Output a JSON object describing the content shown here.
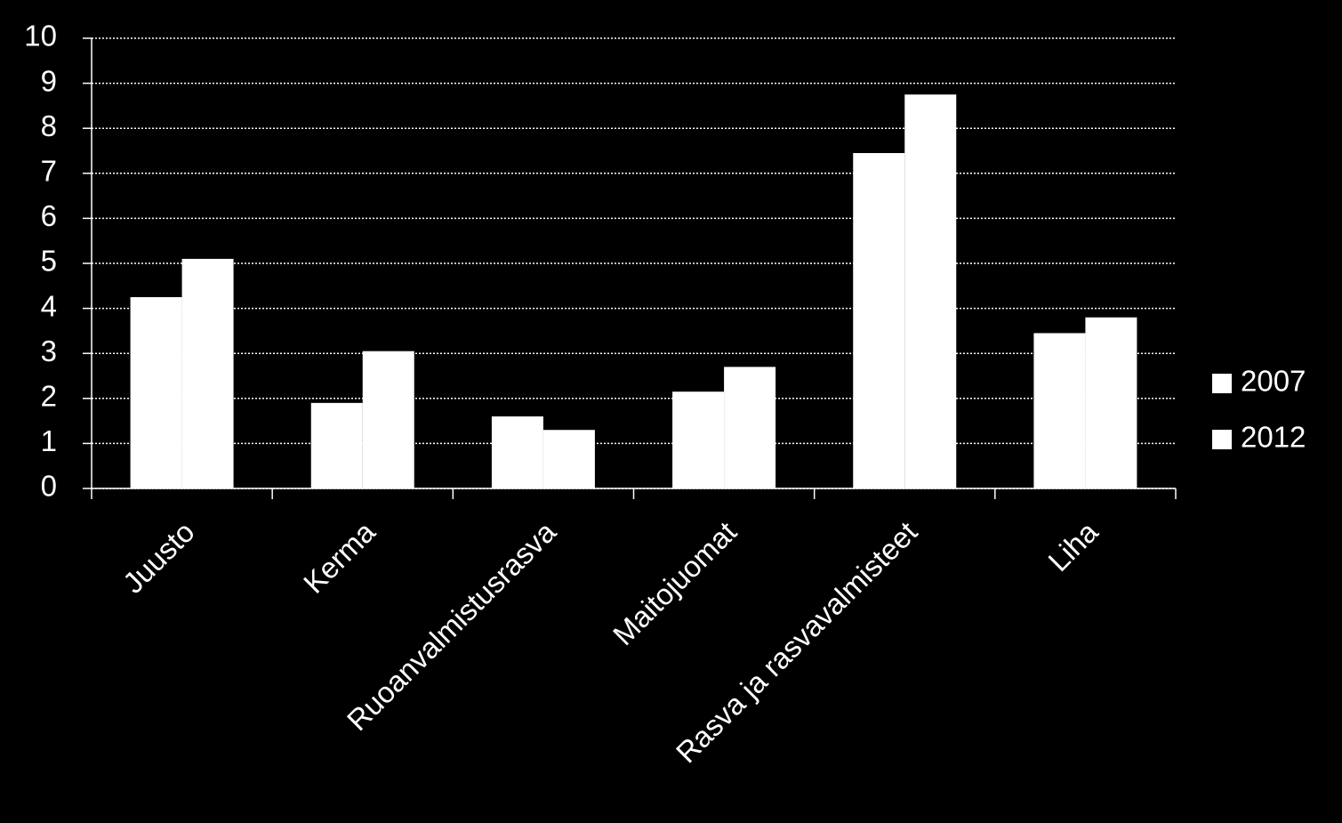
{
  "chart_data": {
    "type": "bar",
    "categories": [
      "Juusto",
      "Kerma",
      "Ruoanvalmistusrasva",
      "Maitojuomat",
      "Rasva ja rasvavalmisteet",
      "Liha"
    ],
    "series": [
      {
        "name": "2007",
        "color": "#ffffff",
        "values": [
          4.25,
          1.9,
          1.6,
          2.15,
          7.45,
          3.45
        ]
      },
      {
        "name": "2012",
        "color": "#ffffff",
        "values": [
          5.1,
          3.05,
          1.3,
          2.7,
          8.75,
          3.8
        ]
      }
    ],
    "ylim": [
      0,
      10
    ],
    "yticks": [
      0,
      1,
      2,
      3,
      4,
      5,
      6,
      7,
      8,
      9,
      10
    ],
    "grid": true,
    "legend": "right"
  }
}
